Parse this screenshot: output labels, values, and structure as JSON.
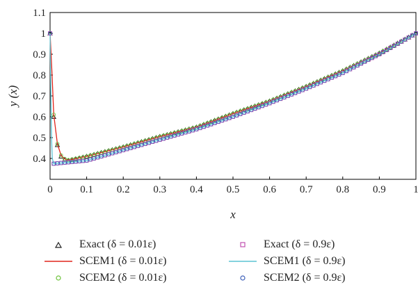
{
  "chart_data": {
    "type": "line",
    "xlabel": "x",
    "ylabel": "y (x)",
    "xlim": [
      0,
      1
    ],
    "ylim": [
      0.3,
      1.1
    ],
    "xticks": [
      "0",
      "0.1",
      "0.2",
      "0.3",
      "0.4",
      "0.5",
      "0.6",
      "0.7",
      "0.8",
      "0.9",
      "1"
    ],
    "yticks": [
      "0.4",
      "0.5",
      "0.6",
      "0.7",
      "0.8",
      "0.9",
      "1",
      "1.1"
    ],
    "grid": false,
    "legend_position": "bottom",
    "series": [
      {
        "name": "Exact (δ = 0.01ε)",
        "style": "triangle-marker",
        "color": "#222222",
        "points": [
          [
            0,
            1.0
          ],
          [
            0.01,
            0.6
          ],
          [
            0.02,
            0.465
          ],
          [
            0.03,
            0.41
          ],
          [
            0.04,
            0.395
          ],
          [
            0.05,
            0.39
          ],
          [
            0.1,
            0.41
          ],
          [
            0.2,
            0.455
          ],
          [
            0.3,
            0.505
          ],
          [
            0.4,
            0.55
          ],
          [
            0.5,
            0.615
          ],
          [
            0.6,
            0.675
          ],
          [
            0.7,
            0.745
          ],
          [
            0.8,
            0.82
          ],
          [
            0.9,
            0.905
          ],
          [
            1.0,
            1.0
          ]
        ]
      },
      {
        "name": "SCEM1 (δ = 0.01ε)",
        "style": "line",
        "color": "#e0251b",
        "points": [
          [
            0,
            1.0
          ],
          [
            0.005,
            0.82
          ],
          [
            0.01,
            0.61
          ],
          [
            0.02,
            0.47
          ],
          [
            0.03,
            0.415
          ],
          [
            0.04,
            0.398
          ],
          [
            0.05,
            0.392
          ],
          [
            0.1,
            0.41
          ],
          [
            0.2,
            0.455
          ],
          [
            0.3,
            0.505
          ],
          [
            0.4,
            0.55
          ],
          [
            0.5,
            0.615
          ],
          [
            0.6,
            0.675
          ],
          [
            0.7,
            0.745
          ],
          [
            0.8,
            0.82
          ],
          [
            0.9,
            0.905
          ],
          [
            1.0,
            1.0
          ]
        ]
      },
      {
        "name": "SCEM2 (δ = 0.01ε)",
        "style": "circle-marker",
        "color": "#6cc23a",
        "points": [
          [
            0,
            1.0
          ],
          [
            0.01,
            0.61
          ],
          [
            0.02,
            0.47
          ],
          [
            0.03,
            0.415
          ],
          [
            0.04,
            0.398
          ],
          [
            0.05,
            0.392
          ],
          [
            0.1,
            0.41
          ],
          [
            0.2,
            0.455
          ],
          [
            0.3,
            0.505
          ],
          [
            0.4,
            0.55
          ],
          [
            0.5,
            0.615
          ],
          [
            0.6,
            0.675
          ],
          [
            0.7,
            0.745
          ],
          [
            0.8,
            0.82
          ],
          [
            0.9,
            0.905
          ],
          [
            1.0,
            1.0
          ]
        ]
      },
      {
        "name": "Exact (δ = 0.9ε)",
        "style": "square-marker",
        "color": "#c050b0",
        "points": [
          [
            0,
            1.0
          ],
          [
            0.002,
            0.72
          ],
          [
            0.004,
            0.5
          ],
          [
            0.006,
            0.4
          ],
          [
            0.01,
            0.375
          ],
          [
            0.1,
            0.39
          ],
          [
            0.2,
            0.44
          ],
          [
            0.3,
            0.49
          ],
          [
            0.4,
            0.54
          ],
          [
            0.5,
            0.6
          ],
          [
            0.6,
            0.665
          ],
          [
            0.7,
            0.735
          ],
          [
            0.8,
            0.81
          ],
          [
            0.9,
            0.9
          ],
          [
            1.0,
            1.0
          ]
        ]
      },
      {
        "name": "SCEM1 (δ = 0.9ε)",
        "style": "line",
        "color": "#5bc4d4",
        "points": [
          [
            0,
            1.0
          ],
          [
            0.002,
            0.72
          ],
          [
            0.004,
            0.5
          ],
          [
            0.006,
            0.4
          ],
          [
            0.01,
            0.375
          ],
          [
            0.1,
            0.39
          ],
          [
            0.2,
            0.44
          ],
          [
            0.3,
            0.49
          ],
          [
            0.4,
            0.54
          ],
          [
            0.5,
            0.6
          ],
          [
            0.6,
            0.665
          ],
          [
            0.7,
            0.735
          ],
          [
            0.8,
            0.81
          ],
          [
            0.9,
            0.9
          ],
          [
            1.0,
            1.0
          ]
        ]
      },
      {
        "name": "SCEM2 (δ = 0.9ε)",
        "style": "circle-marker",
        "color": "#3d5fb8",
        "points": [
          [
            0,
            1.0
          ],
          [
            0.002,
            0.72
          ],
          [
            0.004,
            0.5
          ],
          [
            0.006,
            0.4
          ],
          [
            0.01,
            0.375
          ],
          [
            0.1,
            0.39
          ],
          [
            0.2,
            0.44
          ],
          [
            0.3,
            0.49
          ],
          [
            0.4,
            0.54
          ],
          [
            0.5,
            0.6
          ],
          [
            0.6,
            0.665
          ],
          [
            0.7,
            0.735
          ],
          [
            0.8,
            0.81
          ],
          [
            0.9,
            0.9
          ],
          [
            1.0,
            1.0
          ]
        ]
      }
    ]
  },
  "legend": {
    "items": [
      {
        "label": "Exact (δ = 0.01ε)"
      },
      {
        "label": "Exact (δ = 0.9ε)"
      },
      {
        "label": "SCEM1 (δ = 0.01ε)"
      },
      {
        "label": "SCEM1 (δ = 0.9ε)"
      },
      {
        "label": "SCEM2 (δ = 0.01ε)"
      },
      {
        "label": "SCEM2 (δ = 0.9ε)"
      }
    ]
  }
}
